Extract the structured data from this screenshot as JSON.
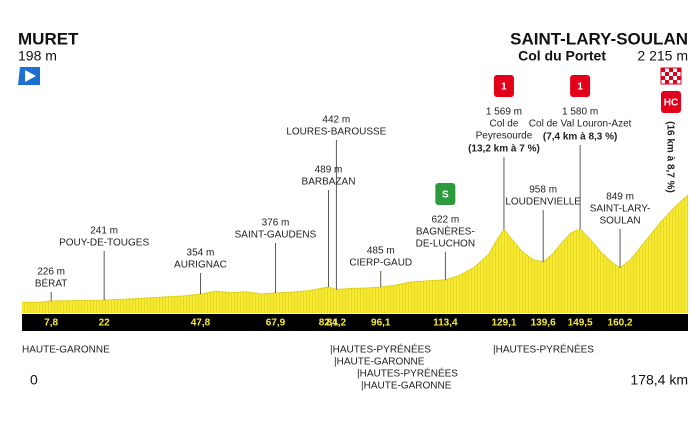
{
  "chart_data": {
    "type": "area",
    "start": {
      "name": "MURET",
      "altitude": "198 m"
    },
    "finish": {
      "name": "SAINT-LARY-SOULAN",
      "climb": "Col du Portet",
      "altitude": "2 215 m",
      "detail": "(16 km à 8,7 %)",
      "icon": "HC",
      "icon_color": "#e2001a"
    },
    "color": "#f7ea33",
    "x": [
      0,
      5,
      7.8,
      12,
      18,
      22,
      28,
      33,
      38,
      43,
      47.8,
      52,
      56,
      60,
      64,
      67.9,
      72,
      77,
      82.1,
      84.2,
      88,
      92,
      96.1,
      100,
      104,
      108,
      113.4,
      117,
      121,
      125,
      127,
      129.1,
      131,
      134,
      137,
      139.6,
      142,
      145,
      147,
      149.5,
      152,
      155,
      158,
      160.2,
      163,
      167,
      171,
      175,
      178.4
    ],
    "values": [
      198,
      205,
      226,
      230,
      236,
      241,
      260,
      280,
      300,
      320,
      354,
      410,
      380,
      400,
      360,
      376,
      390,
      420,
      489,
      442,
      460,
      470,
      485,
      520,
      580,
      600,
      622,
      700,
      850,
      1100,
      1350,
      1569,
      1400,
      1150,
      1000,
      958,
      1100,
      1350,
      1500,
      1580,
      1400,
      1150,
      950,
      849,
      1000,
      1350,
      1700,
      2000,
      2215
    ],
    "xlim": [
      0,
      178.4
    ],
    "xticks": [
      {
        "value": 7.8,
        "label": "7,8"
      },
      22,
      {
        "value": 47.8,
        "label": "47,8"
      },
      {
        "value": 67.9,
        "label": "67,9"
      },
      {
        "value": 82.1,
        "label": "82,1"
      },
      {
        "value": 84.2,
        "label": "84,2"
      },
      {
        "value": 96.1,
        "label": "96,1"
      },
      {
        "value": 113.4,
        "label": "113,4"
      },
      {
        "value": 129.1,
        "label": "129,1"
      },
      {
        "value": 139.6,
        "label": "139,6"
      },
      {
        "value": 149.5,
        "label": "149,5"
      },
      {
        "value": 160.2,
        "label": "160,2"
      }
    ],
    "distance_labels": [
      {
        "value": 0,
        "label": "0"
      },
      {
        "value": 178.4,
        "label": "178,4 km"
      }
    ],
    "annotations": [
      {
        "altitude": "226 m",
        "name": [
          "BÉRAT"
        ],
        "km": 7.8
      },
      {
        "altitude": "241 m",
        "name": [
          "POUY-DE-TOUGES"
        ],
        "km": 22
      },
      {
        "altitude": "354 m",
        "name": [
          "AURIGNAC"
        ],
        "km": 47.8
      },
      {
        "altitude": "376 m",
        "name": [
          "SAINT-GAUDENS"
        ],
        "km": 67.9
      },
      {
        "altitude": "489 m",
        "name": [
          "BARBAZAN"
        ],
        "km": 82.1
      },
      {
        "altitude": "442 m",
        "name": [
          "LOURES-BAROUSSE"
        ],
        "km": 84.2
      },
      {
        "altitude": "485 m",
        "name": [
          "CIERP-GAUD"
        ],
        "km": 96.1
      },
      {
        "altitude": "622 m",
        "name": [
          "BAGNÈRES-",
          "DE-LUCHON"
        ],
        "km": 113.4,
        "icon": "S",
        "icon_color": "#2e9a3e"
      },
      {
        "altitude": "1 569 m",
        "name": [
          "Col de",
          "Peyresourde"
        ],
        "detail": "(13,2 km à 7 %)",
        "km": 129.1,
        "icon": "1",
        "icon_color": "#e2001a"
      },
      {
        "altitude": "958 m",
        "name": [
          "LOUDENVIELLE"
        ],
        "km": 139.6
      },
      {
        "altitude": "1 580 m",
        "name": [
          "Col de Val Louron-Azet"
        ],
        "detail": "(7,4 km à 8,3 %)",
        "km": 149.5,
        "icon": "1",
        "icon_color": "#e2001a"
      },
      {
        "altitude": "849 m",
        "name": [
          "SAINT-LARY-",
          "SOULAN"
        ],
        "km": 160.2
      }
    ],
    "regions": [
      "HAUTE-GARONNE",
      "|HAUTES-PYRÉNÉES",
      "|HAUTE-GARONNE",
      "|HAUTES-PYRÉNÉES",
      "|HAUTE-GARONNE",
      "|HAUTES-PYRÉNÉES"
    ]
  }
}
